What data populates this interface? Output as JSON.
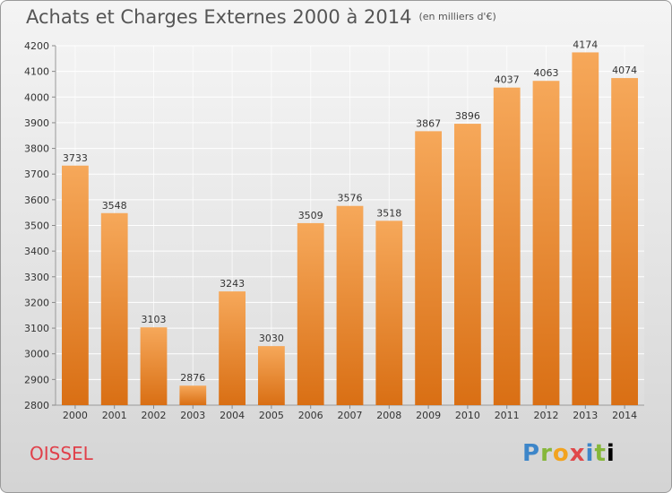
{
  "title": "Achats et Charges Externes 2000 à 2014",
  "unit": "(en milliers d'€)",
  "commune": "OISSEL",
  "logo": "Proxiti",
  "colors": {
    "bar_top": "#f6a85a",
    "bar_bottom": "#d96f14",
    "commune": "#e0404a",
    "plot_bg_top": "#f3f3f3",
    "plot_bg_bottom": "#dedede"
  },
  "chart_data": {
    "type": "bar",
    "categories": [
      "2000",
      "2001",
      "2002",
      "2003",
      "2004",
      "2005",
      "2006",
      "2007",
      "2008",
      "2009",
      "2010",
      "2011",
      "2012",
      "2013",
      "2014"
    ],
    "values": [
      3733,
      3548,
      3103,
      2876,
      3243,
      3030,
      3509,
      3576,
      3518,
      3867,
      3896,
      4037,
      4063,
      4174,
      4074
    ],
    "ylim": [
      2800,
      4200
    ],
    "yticks": [
      2800,
      2900,
      3000,
      3100,
      3200,
      3300,
      3400,
      3500,
      3600,
      3700,
      3800,
      3900,
      4000,
      4100,
      4200
    ],
    "grid": true,
    "data_labels": true
  }
}
